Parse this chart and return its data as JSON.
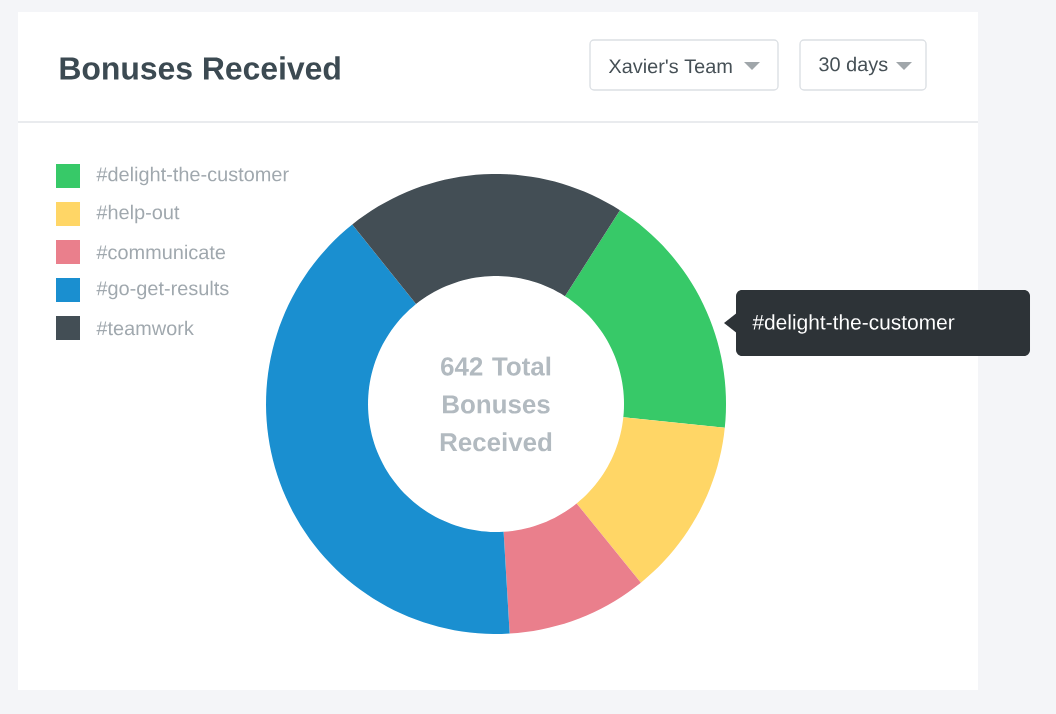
{
  "chart_data": {
    "type": "donut",
    "title": "Bonuses Received",
    "categories": [
      "#delight-the-customer",
      "#help-out",
      "#communicate",
      "#go-get-results",
      "#teamwork"
    ],
    "values": [
      17.6,
      12.5,
      9.9,
      40.2,
      19.8
    ],
    "colors": [
      "#37c968",
      "#ffd666",
      "#ea7f8c",
      "#1a8fd0",
      "#434e55"
    ],
    "legend": "top left",
    "annotations": [
      "Xavier's Team",
      "30 days",
      "642 Total Bonuses Received",
      "#delight-the-customer"
    ]
  }
}
